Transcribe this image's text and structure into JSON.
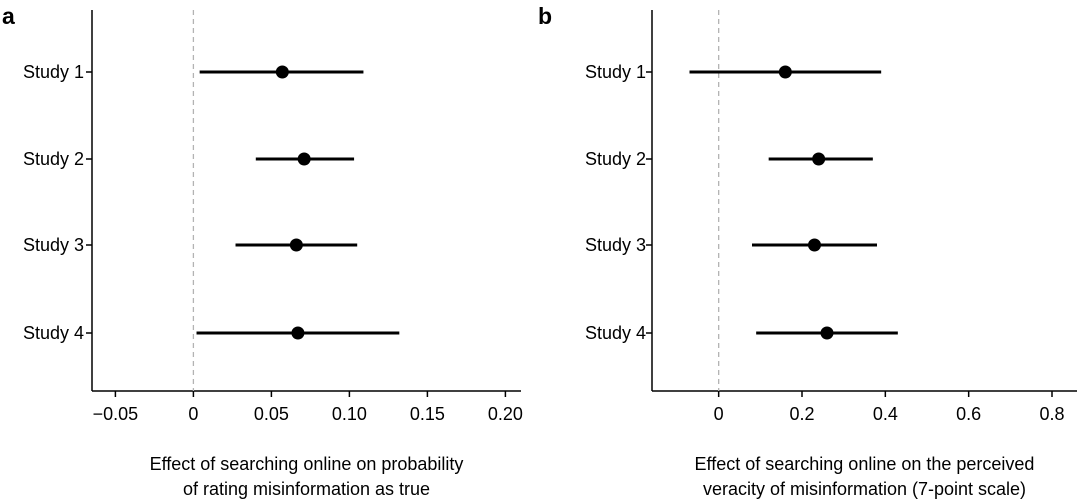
{
  "chart_data": [
    {
      "type": "forest",
      "panel": "a",
      "categories": [
        "Study 1",
        "Study 2",
        "Study 3",
        "Study 4"
      ],
      "estimates": [
        0.057,
        0.071,
        0.066,
        0.067
      ],
      "ci_low": [
        0.004,
        0.04,
        0.027,
        0.002
      ],
      "ci_high": [
        0.109,
        0.103,
        0.105,
        0.132
      ],
      "xlim": [
        -0.065,
        0.21
      ],
      "xticks": [
        -0.05,
        0,
        0.05,
        0.1,
        0.15,
        0.2
      ],
      "xtick_labels": [
        "−0.05",
        "0",
        "0.05",
        "0.10",
        "0.15",
        "0.20"
      ],
      "reference_line": 0,
      "xlabel": [
        "Effect of searching online on probability",
        "of rating misinformation as true"
      ]
    },
    {
      "type": "forest",
      "panel": "b",
      "categories": [
        "Study 1",
        "Study 2",
        "Study 3",
        "Study 4"
      ],
      "estimates": [
        0.16,
        0.24,
        0.23,
        0.26
      ],
      "ci_low": [
        -0.07,
        0.12,
        0.08,
        0.09
      ],
      "ci_high": [
        0.39,
        0.37,
        0.38,
        0.43
      ],
      "xlim": [
        -0.16,
        0.86
      ],
      "xticks": [
        0,
        0.2,
        0.4,
        0.6,
        0.8
      ],
      "xtick_labels": [
        "0",
        "0.2",
        "0.4",
        "0.6",
        "0.8"
      ],
      "reference_line": 0,
      "xlabel": [
        "Effect of searching online on the perceived",
        "veracity of misinformation (7-point scale)"
      ]
    }
  ]
}
